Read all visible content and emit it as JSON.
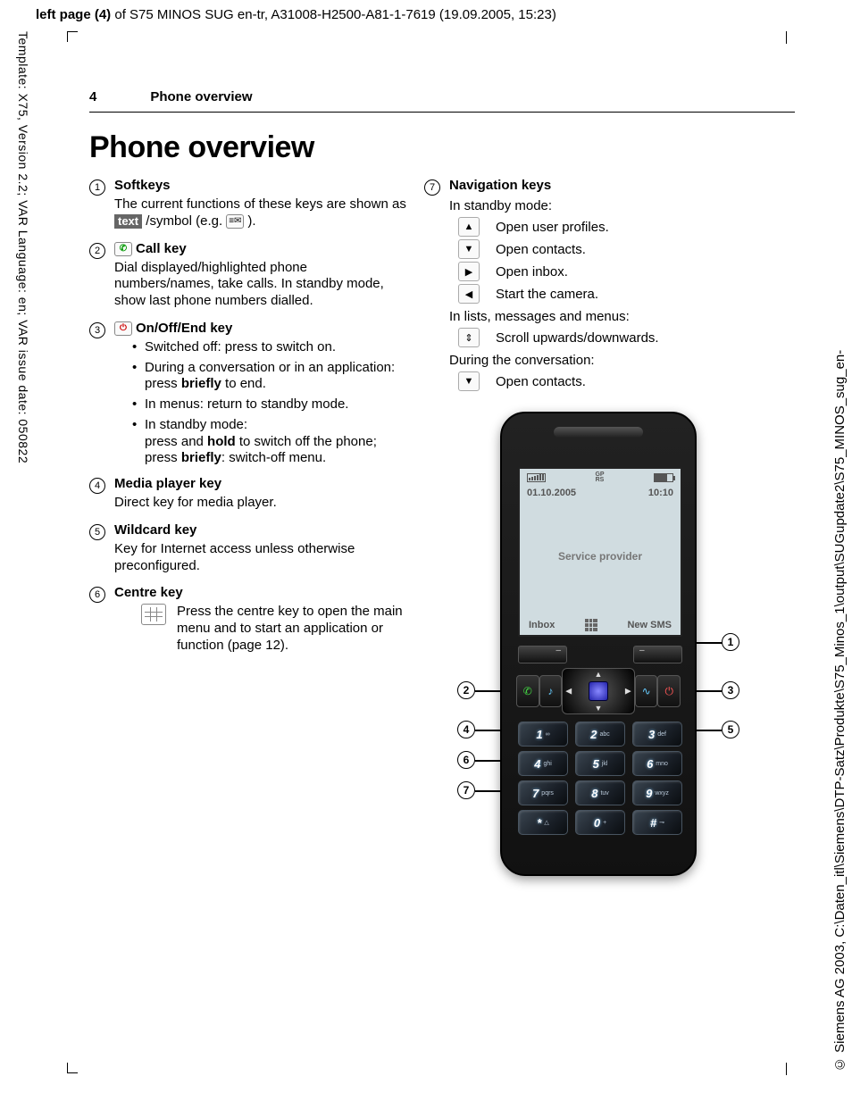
{
  "top_header": {
    "prefix": "left page (4)",
    "rest": " of S75 MINOS SUG en-tr, A31008-H2500-A81-1-7619 (19.09.2005, 15:23)"
  },
  "left_margin": "Template: X75, Version 2.2; VAR Language: en; VAR issue date: 050822",
  "right_margin": "© Siemens AG 2003, C:\\Daten_itl\\Siemens\\DTP-Satz\\Produkte\\S75_Minos_1\\output\\SUGupdate2\\S75_MINOS_sug_en-",
  "page_header": {
    "number": "4",
    "title": "Phone overview"
  },
  "h1": "Phone overview",
  "items": {
    "i1": {
      "title": "Softkeys",
      "desc_a": "The current functions of these keys are shown as ",
      "badge": "text",
      "desc_b": " /symbol (e.g. ",
      "desc_c": ")."
    },
    "i2": {
      "title": "Call key",
      "desc": "Dial displayed/highlighted phone numbers/names, take calls. In standby mode, show last phone numbers dialled."
    },
    "i3": {
      "title": "On/Off/End key",
      "b1": "Switched off: press to switch on.",
      "b2a": "During a conversation or in an application: press ",
      "b2b": "briefly",
      "b2c": " to end.",
      "b3": "In menus: return to standby mode.",
      "b4a": "In standby mode:",
      "b4b": "press and ",
      "b4c": "hold",
      "b4d": " to switch off the phone;",
      "b4e": "press ",
      "b4f": "briefly",
      "b4g": ": switch-off menu."
    },
    "i4": {
      "title": "Media player key",
      "desc": "Direct key for media player."
    },
    "i5": {
      "title": "Wildcard key",
      "desc": "Key for Internet access unless otherwise preconfigured."
    },
    "i6": {
      "title": "Centre key",
      "desc": "Press the centre key to open the main menu and to start an application or function (page 12)."
    },
    "i7": {
      "title": "Navigation keys",
      "standby": "In standby mode:",
      "n1": "Open user profiles.",
      "n2": "Open contacts.",
      "n3": "Open inbox.",
      "n4": "Start the camera.",
      "lists": "In lists, messages and menus:",
      "n5": "Scroll upwards/downwards.",
      "conv": "During the conversation:",
      "n6": "Open contacts."
    }
  },
  "phone": {
    "status_mid": "GP RS",
    "date": "01.10.2005",
    "time": "10:10",
    "provider": "Service provider",
    "sk_left": "Inbox",
    "sk_right": "New SMS",
    "keys": [
      {
        "n": "1",
        "l": "∞"
      },
      {
        "n": "2",
        "l": "abc"
      },
      {
        "n": "3",
        "l": "def"
      },
      {
        "n": "4",
        "l": "ghi"
      },
      {
        "n": "5",
        "l": "jkl"
      },
      {
        "n": "6",
        "l": "mno"
      },
      {
        "n": "7",
        "l": "pqrs"
      },
      {
        "n": "8",
        "l": "tuv"
      },
      {
        "n": "9",
        "l": "wxyz"
      },
      {
        "n": "*",
        "l": "△"
      },
      {
        "n": "0",
        "l": "+"
      },
      {
        "n": "#",
        "l": "⊸"
      }
    ],
    "callouts": [
      "1",
      "2",
      "3",
      "4",
      "5",
      "6",
      "7"
    ]
  }
}
